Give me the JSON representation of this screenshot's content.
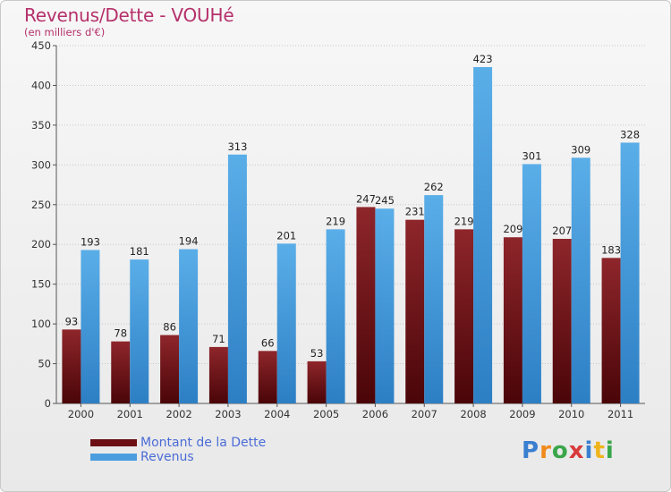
{
  "header": {
    "title": "Revenus/Dette - VOUHé",
    "subtitle": "(en milliers d'€)"
  },
  "chart_data": {
    "type": "bar",
    "categories": [
      "2000",
      "2001",
      "2002",
      "2003",
      "2004",
      "2005",
      "2006",
      "2007",
      "2008",
      "2009",
      "2010",
      "2011"
    ],
    "series": [
      {
        "name": "Montant de la Dette",
        "color": "#7a1218",
        "values": [
          93,
          78,
          86,
          71,
          66,
          53,
          247,
          231,
          219,
          209,
          207,
          183
        ]
      },
      {
        "name": "Revenus",
        "color": "#4a9ee0",
        "values": [
          193,
          181,
          194,
          313,
          201,
          219,
          245,
          262,
          423,
          301,
          309,
          328
        ]
      }
    ],
    "ylim": [
      0,
      450
    ],
    "yticks": [
      0,
      50,
      100,
      150,
      200,
      250,
      300,
      350,
      400,
      450
    ],
    "grid": true,
    "data_labels": true,
    "legend": "bottom-left"
  },
  "legend": {
    "items": [
      {
        "label": "Montant de la Dette",
        "color": "#6b0f14"
      },
      {
        "label": "Revenus",
        "color": "#4a9ee0"
      }
    ]
  },
  "logo": {
    "letters": [
      "P",
      "r",
      "o",
      "x",
      "i",
      "t",
      "i"
    ],
    "colors": [
      "#3a7fd0",
      "#f08a1c",
      "#3aa64a",
      "#d83a3a",
      "#3a7fd0",
      "#f0b41c",
      "#3aa64a"
    ]
  }
}
